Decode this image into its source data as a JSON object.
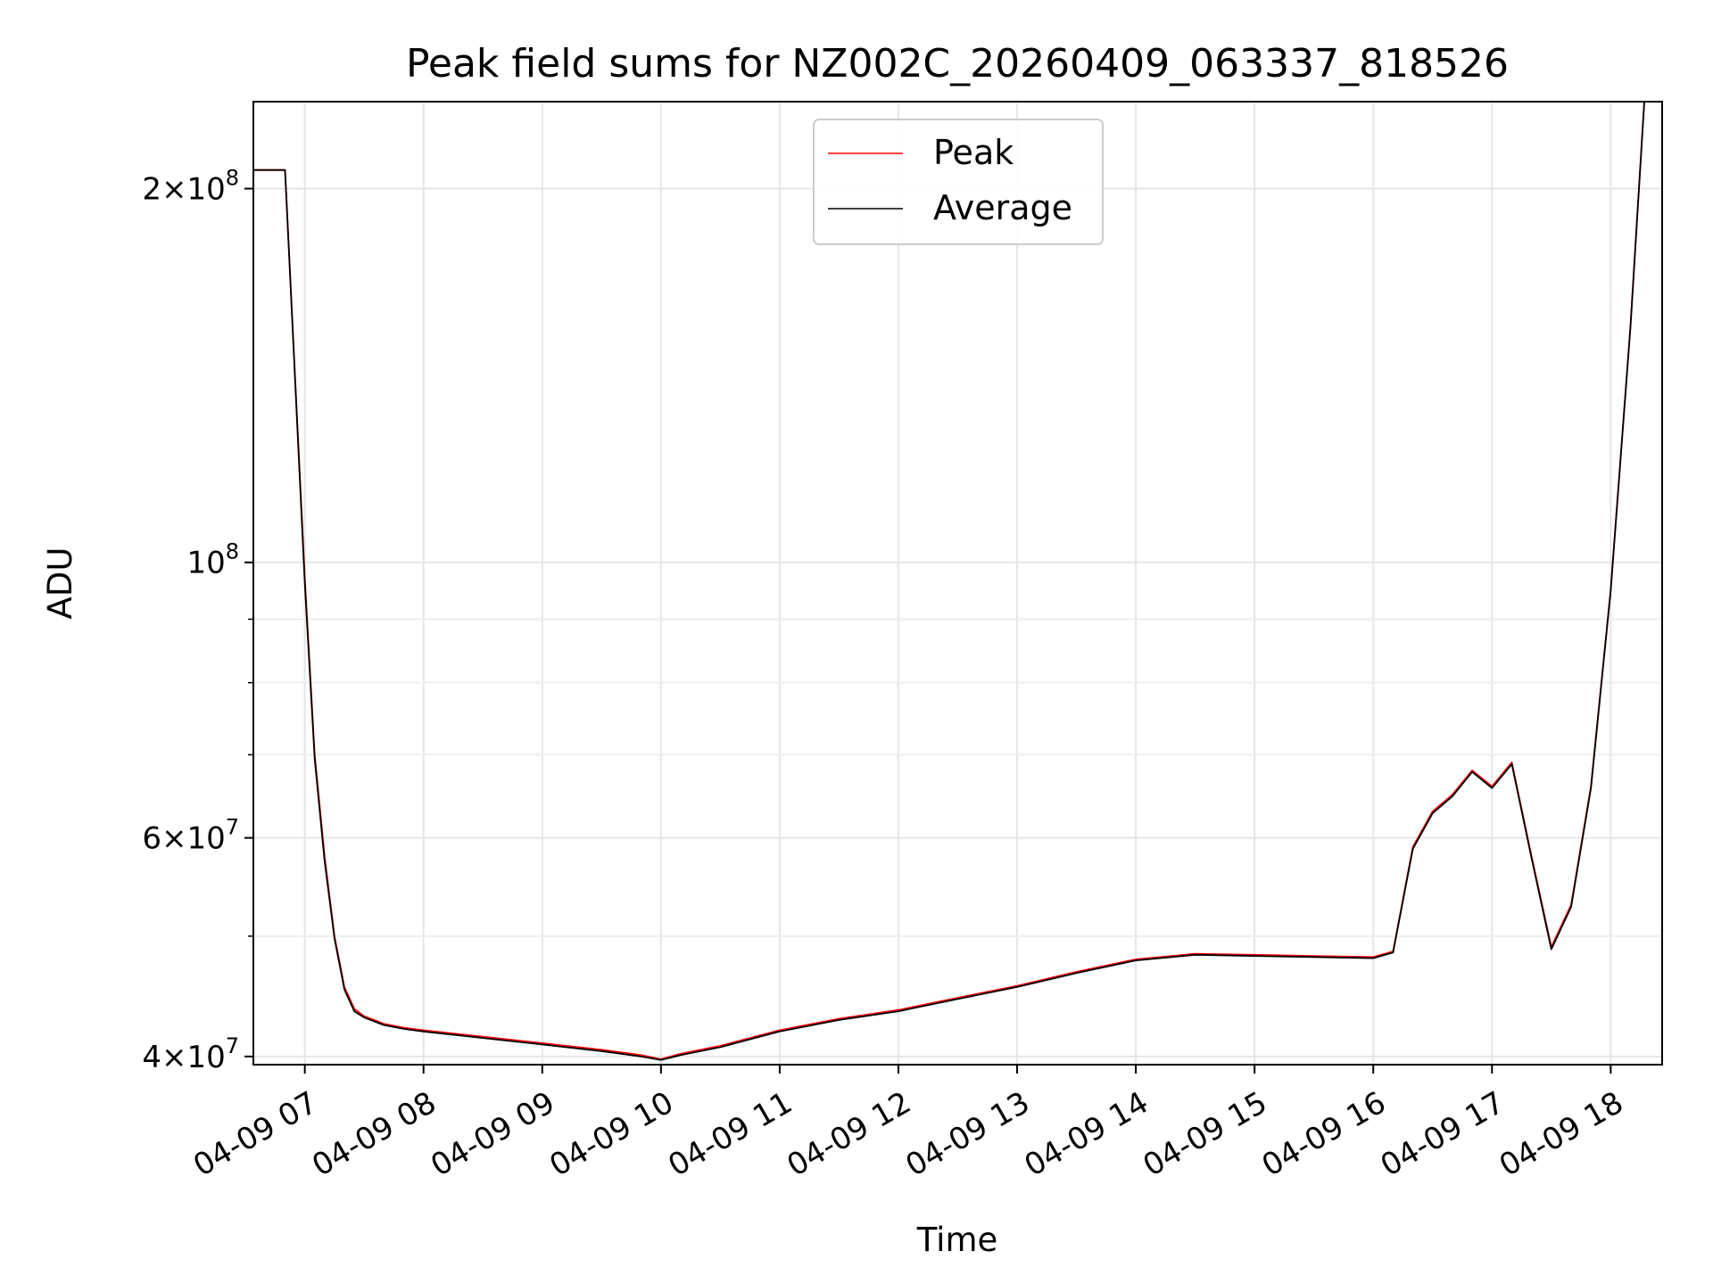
{
  "chart_data": {
    "type": "line",
    "title": "Peak field sums for NZ002C_20260409_063337_818526",
    "xlabel": "Time",
    "ylabel": "ADU",
    "y_scale": "log",
    "ylim": [
      39400000,
      235000000
    ],
    "xlim": [
      "2026-04-09 06:34",
      "2026-04-09 18:26"
    ],
    "grid": true,
    "legend_position": "top-center",
    "x_ticks": [
      "04-09 07",
      "04-09 08",
      "04-09 09",
      "04-09 10",
      "04-09 11",
      "04-09 12",
      "04-09 13",
      "04-09 14",
      "04-09 15",
      "04-09 16",
      "04-09 17",
      "04-09 18"
    ],
    "y_ticks": [
      {
        "value": 40000000,
        "base": "4",
        "exp": "7"
      },
      {
        "value": 60000000,
        "base": "6",
        "exp": "7"
      },
      {
        "value": 100000000,
        "base": "",
        "exp": "8"
      },
      {
        "value": 200000000,
        "base": "2",
        "exp": "8"
      }
    ],
    "y_minor_ticks": [
      50000000,
      70000000,
      80000000,
      90000000
    ],
    "x_time": [
      "06:34",
      "06:50",
      "07:00",
      "07:05",
      "07:10",
      "07:15",
      "07:20",
      "07:25",
      "07:30",
      "07:35",
      "07:40",
      "07:50",
      "08:00",
      "08:30",
      "09:00",
      "09:30",
      "09:50",
      "10:00",
      "10:10",
      "10:30",
      "11:00",
      "11:30",
      "12:00",
      "12:30",
      "13:00",
      "13:30",
      "14:00",
      "14:30",
      "15:00",
      "15:30",
      "16:00",
      "16:10",
      "16:20",
      "16:30",
      "16:40",
      "16:50",
      "17:00",
      "17:10",
      "17:20",
      "17:30",
      "17:40",
      "17:50",
      "18:00",
      "18:10",
      "18:17"
    ],
    "series": [
      {
        "name": "Peak",
        "color": "#ff0000",
        "values": [
          207000000,
          207000000,
          97000000,
          70000000,
          58000000,
          50000000,
          45500000,
          43700000,
          43100000,
          42800000,
          42500000,
          42200000,
          42000000,
          41500000,
          41000000,
          40500000,
          40100000,
          39800000,
          40200000,
          40800000,
          42000000,
          42900000,
          43600000,
          44600000,
          45600000,
          46800000,
          47900000,
          48400000,
          48300000,
          48200000,
          48100000,
          48600000,
          59000000,
          63000000,
          65000000,
          68000000,
          66000000,
          69000000,
          58000000,
          49000000,
          53000000,
          66000000,
          95000000,
          155000000,
          240000000
        ]
      },
      {
        "name": "Average",
        "color": "#000000",
        "values": [
          207000000,
          207000000,
          96000000,
          69500000,
          57500000,
          49800000,
          45300000,
          43500000,
          43000000,
          42700000,
          42400000,
          42100000,
          41900000,
          41400000,
          40900000,
          40400000,
          40000000,
          39750000,
          40100000,
          40700000,
          41900000,
          42800000,
          43500000,
          44500000,
          45500000,
          46700000,
          47800000,
          48300000,
          48200000,
          48100000,
          48000000,
          48500000,
          58800000,
          62800000,
          64800000,
          67800000,
          65800000,
          68800000,
          57800000,
          48800000,
          52800000,
          65800000,
          94800000,
          154800000,
          240000000
        ]
      }
    ]
  }
}
